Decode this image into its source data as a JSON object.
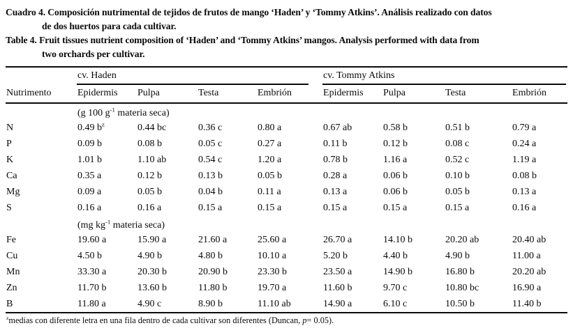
{
  "caption": {
    "es": "Cuadro 4. Composición nutrimental de tejidos de frutos de mango ‘Haden’ y ‘Tommy Atkins’. Análisis realizado con datos\nde dos huertos para cada cultivar.",
    "en": "Table 4. Fruit tissues nutrient composition of ‘Haden’ and ‘Tommy Atkins’ mangos. Analysis performed with data from\ntwo orchards per cultivar."
  },
  "table": {
    "row_header": "Nutrimento",
    "groups": [
      {
        "label": "cv. Haden",
        "columns": [
          "Epidermis",
          "Pulpa",
          "Testa",
          "Embrión"
        ]
      },
      {
        "label": "cv. Tommy Atkins",
        "columns": [
          "Epidermis",
          "Pulpa",
          "Testa",
          "Embrión"
        ]
      }
    ],
    "sections": [
      {
        "unit": "(g 100 g^{-1} materia seca)",
        "rows": [
          {
            "nutrient": "N",
            "values": [
              "0.49 b^{z}",
              "0.44 bc",
              "0.36 c",
              "0.80 a",
              "0.67 ab",
              "0.58 b",
              "0.51 b",
              "0.79 a"
            ]
          },
          {
            "nutrient": "P",
            "values": [
              "0.09 b",
              "0.08 b",
              "0.05 c",
              "0.27 a",
              "0.11 b",
              "0.12 b",
              "0.08 c",
              "0.24 a"
            ]
          },
          {
            "nutrient": "K",
            "values": [
              "1.01 b",
              "1.10 ab",
              "0.54 c",
              "1.20 a",
              "0.78 b",
              "1.16 a",
              "0.52 c",
              "1.19 a"
            ]
          },
          {
            "nutrient": "Ca",
            "values": [
              "0.35 a",
              "0.12 b",
              "0.13 b",
              "0.05 b",
              "0.28 a",
              "0.06 b",
              "0.10 b",
              "0.08 b"
            ]
          },
          {
            "nutrient": "Mg",
            "values": [
              "0.09 a",
              "0.05 b",
              "0.04 b",
              "0.11 a",
              "0.13 a",
              "0.06 b",
              "0.05 b",
              "0.13 a"
            ]
          },
          {
            "nutrient": "S",
            "values": [
              "0.16 a",
              "0.16 a",
              "0.15 a",
              "0.15 a",
              "0.15 a",
              "0.15 a",
              "0.15 a",
              "0.16 a"
            ]
          }
        ]
      },
      {
        "unit": "(mg kg^{-1} materia seca)",
        "rows": [
          {
            "nutrient": "Fe",
            "values": [
              "19.60 a",
              "15.90 a",
              "21.60 a",
              "25.60 a",
              "26.70 a",
              "14.10 b",
              "20.20 ab",
              "20.40 ab"
            ]
          },
          {
            "nutrient": "Cu",
            "values": [
              "4.50 b",
              "4.90 b",
              "4.80 b",
              "10.10 a",
              "5.20 b",
              "4.40 b",
              "4.90 b",
              "11.00 a"
            ]
          },
          {
            "nutrient": "Mn",
            "values": [
              "33.30 a",
              "20.30 b",
              "20.90 b",
              "23.30 b",
              "23.50 a",
              "14.90 b",
              "16.80 b",
              "20.20 ab"
            ]
          },
          {
            "nutrient": "Zn",
            "values": [
              "11.70 b",
              "13.60 b",
              "11.80 b",
              "19.70 a",
              "11.60 b",
              "9.70 c",
              "10.80 bc",
              "16.90 a"
            ]
          },
          {
            "nutrient": "B",
            "values": [
              "11.80 a",
              "4.90 c",
              "8.90 b",
              "11.10 ab",
              "14.90 a",
              "6.10 c",
              "10.50 b",
              "11.40 b"
            ]
          }
        ]
      }
    ],
    "footnote": "^{z}medias con diferente letra en una fila dentro de cada cultivar son diferentes (Duncan, ~{p}= 0.05)."
  }
}
